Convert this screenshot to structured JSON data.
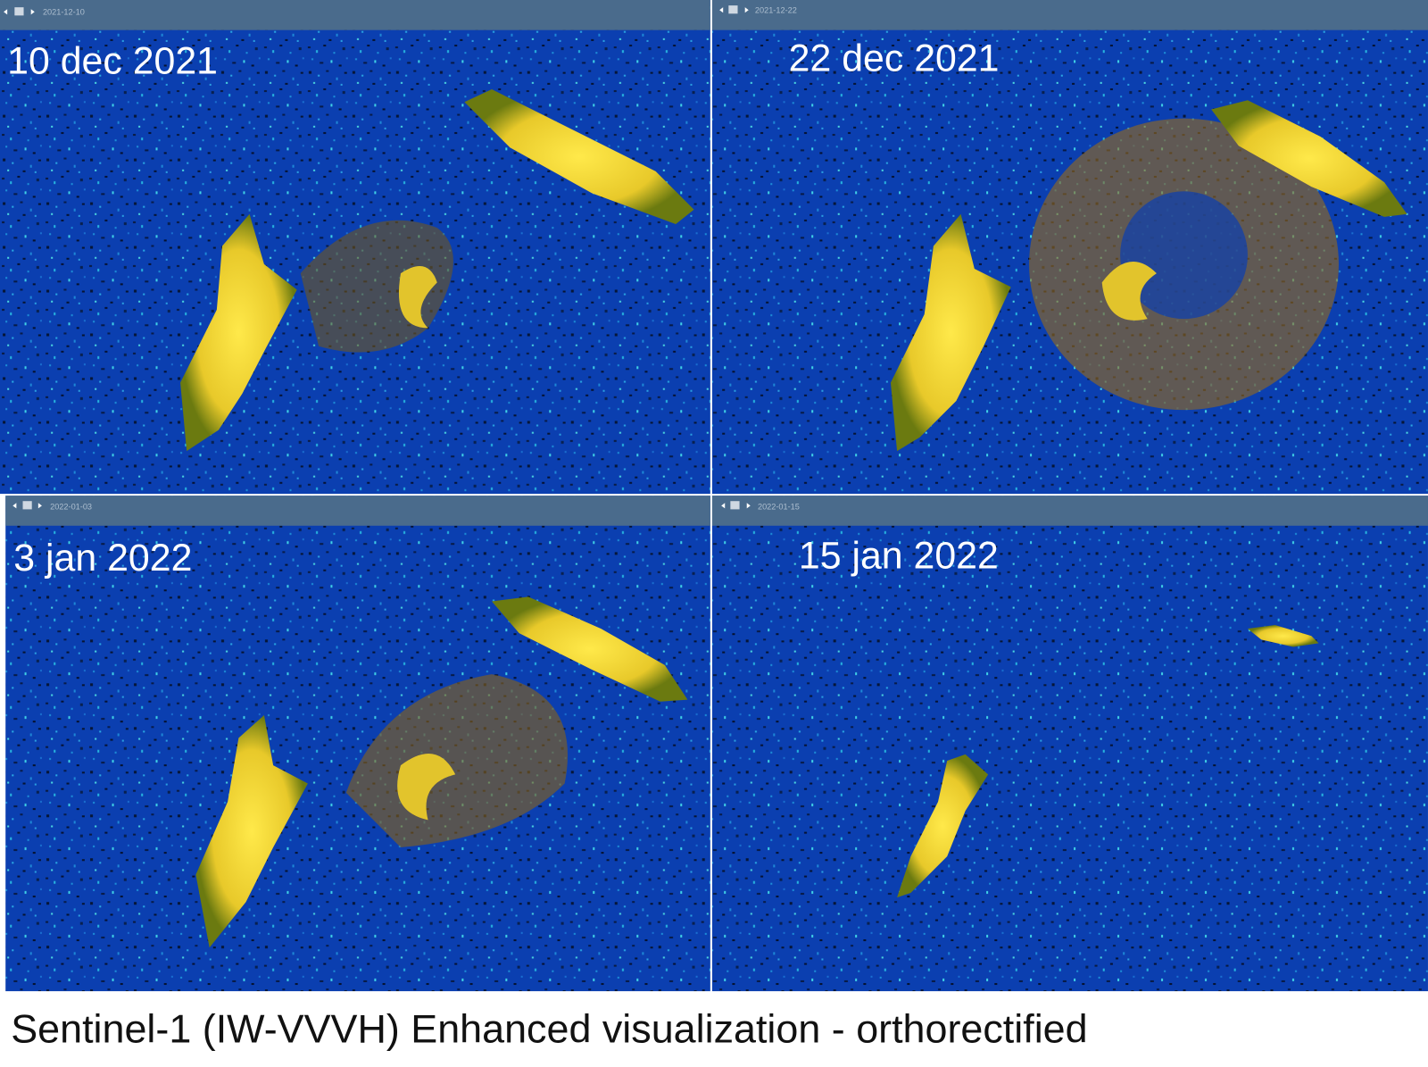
{
  "panels": [
    {
      "header_date": "2021-12-10",
      "label": "10 dec 2021"
    },
    {
      "header_date": "2021-12-22",
      "label": "22 dec 2021"
    },
    {
      "header_date": "2022-01-03",
      "label": "3 jan 2022"
    },
    {
      "header_date": "2022-01-15",
      "label": "15 jan 2022"
    }
  ],
  "caption": "Sentinel-1 (IW-VVVH) Enhanced visualization - orthorectified"
}
